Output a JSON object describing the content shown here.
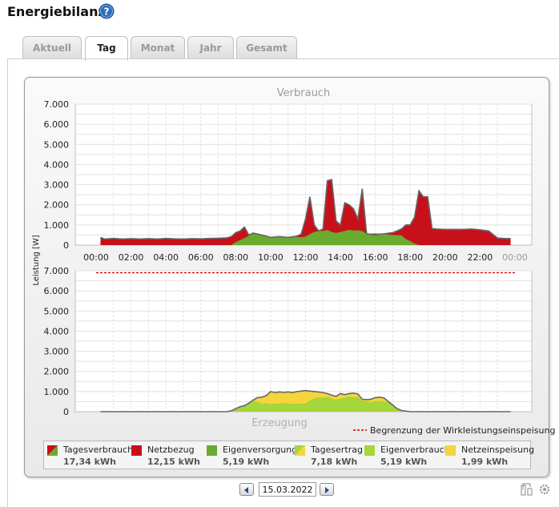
{
  "page": {
    "title": "Energiebilanz"
  },
  "tabs": [
    {
      "label": "Aktuell",
      "active": false
    },
    {
      "label": "Tag",
      "active": true
    },
    {
      "label": "Monat",
      "active": false
    },
    {
      "label": "Jahr",
      "active": false
    },
    {
      "label": "Gesamt",
      "active": false
    }
  ],
  "date": {
    "value": "15.03.2022"
  },
  "colors": {
    "netzbezug": "#c8101a",
    "eigenversorgung": "#6aaa2e",
    "eigenverbrauch": "#a5d63a",
    "netzeinspeisung": "#f6d53a",
    "outline": "#666666",
    "limit": "#cc0000"
  },
  "chart_data": [
    {
      "type": "area",
      "title": "Verbrauch",
      "ylabel": "Leistung [W]",
      "ylim": [
        0,
        7000
      ],
      "yticks": [
        "7.000",
        "6.000",
        "5.000",
        "4.000",
        "3.000",
        "2.000",
        "1.000",
        "0"
      ],
      "xticks": [
        "00:00",
        "02:00",
        "04:00",
        "06:00",
        "08:00",
        "10:00",
        "12:00",
        "14:00",
        "16:00",
        "18:00",
        "20:00",
        "22:00",
        "00:00"
      ],
      "x_hours": [
        0.25,
        0.5,
        1,
        1.5,
        2,
        2.5,
        3,
        3.5,
        4,
        4.5,
        5,
        5.5,
        6,
        6.5,
        7,
        7.5,
        7.75,
        8,
        8.25,
        8.5,
        8.75,
        9,
        9.5,
        10,
        10.5,
        11,
        11.5,
        11.75,
        12,
        12.25,
        12.5,
        12.75,
        13,
        13.25,
        13.5,
        13.75,
        14,
        14.25,
        14.5,
        14.75,
        15,
        15.25,
        15.5,
        15.75,
        16,
        16.25,
        16.5,
        17,
        17.5,
        17.75,
        18,
        18.25,
        18.5,
        18.75,
        19,
        19.25,
        19.5,
        20,
        20.5,
        21,
        21.5,
        22,
        22.5,
        23,
        23.5,
        23.75
      ],
      "series": [
        {
          "name": "Tagesverbrauch",
          "values": [
            380,
            300,
            330,
            300,
            320,
            300,
            320,
            300,
            330,
            310,
            300,
            320,
            310,
            330,
            340,
            360,
            420,
            620,
            700,
            900,
            500,
            600,
            500,
            380,
            420,
            380,
            440,
            550,
            1300,
            2400,
            1000,
            700,
            800,
            3200,
            3250,
            1200,
            1000,
            2100,
            2000,
            1800,
            1300,
            2800,
            560,
            540,
            550,
            540,
            560,
            620,
            800,
            1000,
            1000,
            1400,
            2700,
            2400,
            2400,
            820,
            800,
            780,
            780,
            780,
            800,
            760,
            700,
            350,
            320,
            330
          ]
        },
        {
          "name": "Eigenversorgung",
          "values": [
            0,
            0,
            0,
            0,
            0,
            0,
            0,
            0,
            0,
            0,
            0,
            0,
            0,
            0,
            0,
            0,
            0,
            150,
            250,
            350,
            460,
            560,
            500,
            380,
            420,
            380,
            400,
            400,
            420,
            550,
            650,
            700,
            700,
            750,
            650,
            600,
            650,
            700,
            760,
            720,
            740,
            700,
            560,
            500,
            480,
            520,
            540,
            500,
            480,
            300,
            200,
            80,
            0,
            0,
            0,
            0,
            0,
            0,
            0,
            0,
            0,
            0,
            0,
            0,
            0,
            0
          ]
        }
      ]
    },
    {
      "type": "area",
      "title": "Erzeugung",
      "ylabel": "Leistung [W]",
      "ylim": [
        0,
        7000
      ],
      "yticks": [
        "7.000",
        "6.000",
        "5.000",
        "4.000",
        "3.000",
        "2.000",
        "1.000",
        "0"
      ],
      "limit_line": {
        "value": 6900,
        "label": "Begrenzung der Wirkleistungseinspeisung"
      },
      "x_hours": [
        0.25,
        7.5,
        7.75,
        8,
        8.25,
        8.5,
        8.75,
        9,
        9.25,
        9.5,
        9.75,
        10,
        10.25,
        10.5,
        10.75,
        11,
        11.25,
        11.5,
        11.75,
        12,
        12.25,
        12.5,
        12.75,
        13,
        13.25,
        13.5,
        13.75,
        14,
        14.25,
        14.5,
        14.75,
        15,
        15.25,
        15.5,
        15.75,
        16,
        16.25,
        16.5,
        16.75,
        17,
        17.25,
        17.5,
        18,
        23.75
      ],
      "series": [
        {
          "name": "Tagesertrag",
          "values": [
            0,
            0,
            50,
            150,
            250,
            300,
            420,
            580,
            700,
            720,
            800,
            1000,
            950,
            980,
            960,
            980,
            950,
            1000,
            1020,
            1050,
            1020,
            1000,
            980,
            950,
            900,
            820,
            760,
            900,
            850,
            900,
            920,
            880,
            620,
            600,
            620,
            700,
            720,
            680,
            500,
            330,
            150,
            60,
            0,
            0
          ]
        },
        {
          "name": "Eigenverbrauch",
          "values": [
            0,
            0,
            0,
            150,
            250,
            300,
            420,
            560,
            500,
            380,
            420,
            380,
            400,
            400,
            420,
            420,
            380,
            400,
            400,
            420,
            550,
            650,
            700,
            700,
            750,
            650,
            600,
            650,
            700,
            760,
            720,
            740,
            560,
            500,
            480,
            520,
            540,
            500,
            480,
            300,
            150,
            60,
            0,
            0
          ]
        }
      ]
    }
  ],
  "legend": [
    {
      "label": "Tagesverbrauch",
      "value": "17,34 kWh",
      "swatch": "split-red-green"
    },
    {
      "label": "Netzbezug",
      "value": "12,15 kWh",
      "swatch": "#c8101a"
    },
    {
      "label": "Eigenversorgung",
      "value": "5,19 kWh",
      "swatch": "#6aaa2e"
    },
    {
      "label": "Tagesertrag",
      "value": "7,18 kWh",
      "swatch": "split-green-yellow"
    },
    {
      "label": "Eigenverbrauch",
      "value": "5,19 kWh",
      "swatch": "#a5d63a"
    },
    {
      "label": "Netzeinspeisung",
      "value": "1,99 kWh",
      "swatch": "#f6d53a"
    }
  ],
  "icons": {
    "help": "help-circle-icon",
    "prev": "arrow-left-icon",
    "next": "arrow-right-icon"
  }
}
